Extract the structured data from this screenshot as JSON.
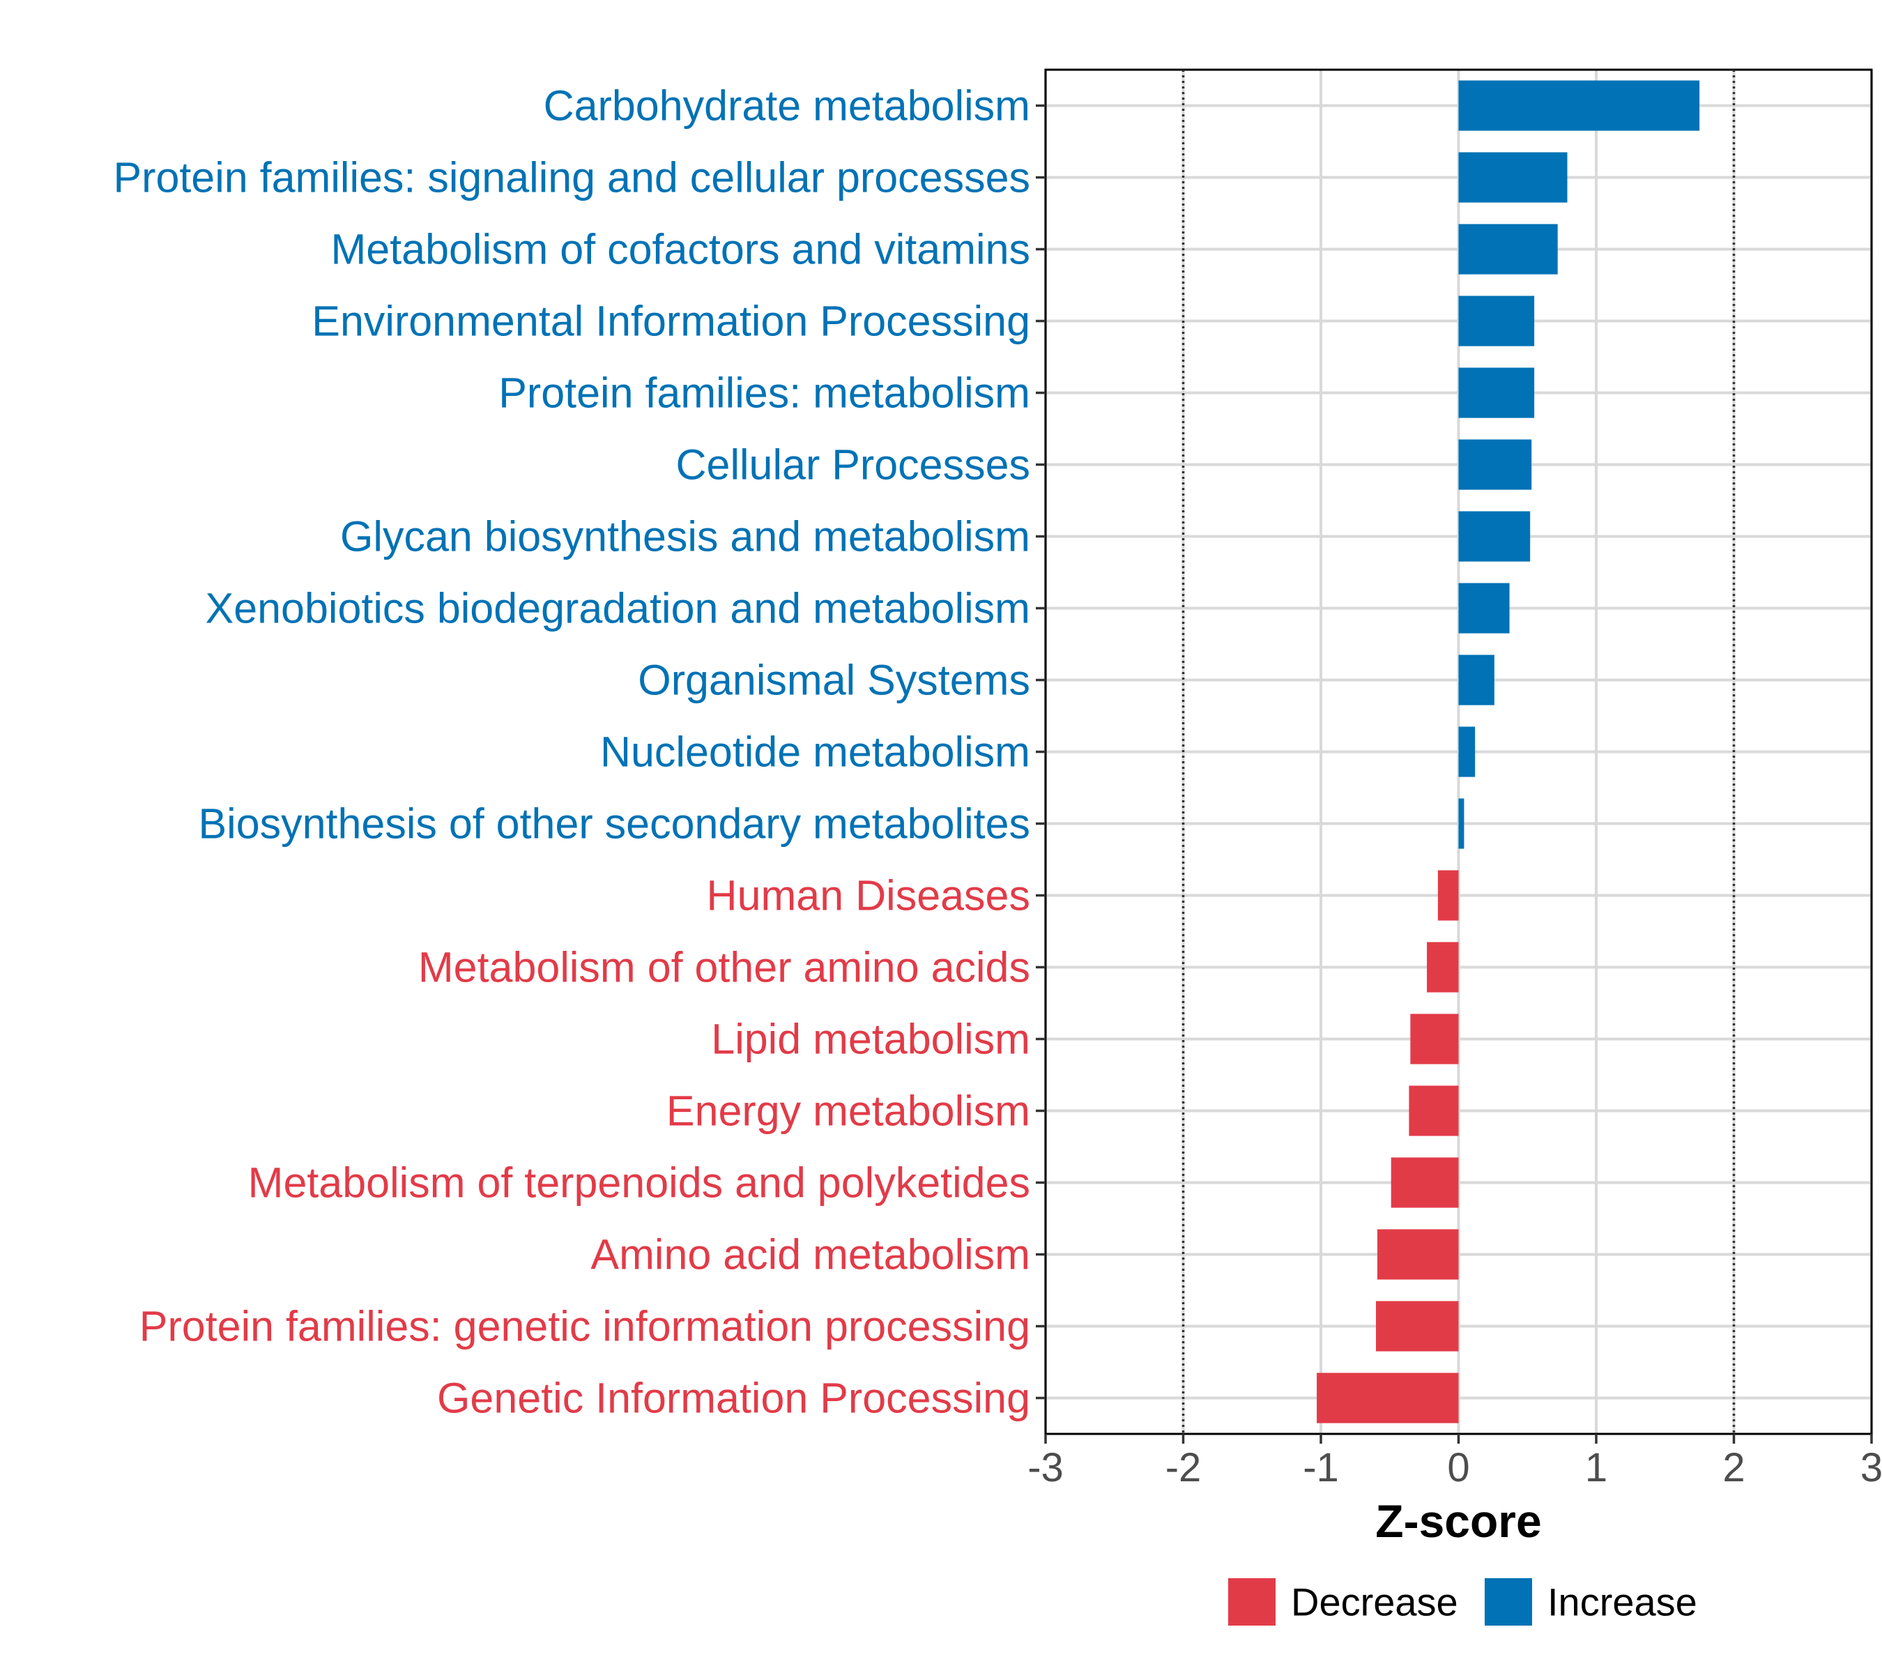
{
  "chart_data": {
    "type": "bar",
    "orientation": "horizontal",
    "title": "",
    "xlabel": "Z-score",
    "ylabel": "",
    "xlim": [
      -3,
      3
    ],
    "x_ticks": [
      "-3",
      "-2",
      "-1",
      "0",
      "1",
      "2",
      "3"
    ],
    "reference_lines": [
      -2,
      2
    ],
    "grid": true,
    "colors": {
      "Increase": "#0072b5",
      "Decrease": "#e23b48"
    },
    "categories": [
      "Carbohydrate metabolism",
      "Protein families: signaling and cellular processes",
      "Metabolism of cofactors and vitamins",
      "Environmental Information Processing",
      "Protein families: metabolism",
      "Cellular Processes",
      "Glycan biosynthesis and metabolism",
      "Xenobiotics biodegradation and metabolism",
      "Organismal Systems",
      "Nucleotide metabolism",
      "Biosynthesis of other secondary metabolites",
      "Human Diseases",
      "Metabolism of other amino acids",
      "Lipid metabolism",
      "Energy metabolism",
      "Metabolism of terpenoids and polyketides",
      "Amino acid metabolism",
      "Protein families: genetic information processing",
      "Genetic Information Processing"
    ],
    "values": [
      1.75,
      0.79,
      0.72,
      0.55,
      0.55,
      0.53,
      0.52,
      0.37,
      0.26,
      0.12,
      0.04,
      -0.15,
      -0.23,
      -0.35,
      -0.36,
      -0.49,
      -0.59,
      -0.6,
      -1.03
    ],
    "groups": [
      "Increase",
      "Increase",
      "Increase",
      "Increase",
      "Increase",
      "Increase",
      "Increase",
      "Increase",
      "Increase",
      "Increase",
      "Increase",
      "Decrease",
      "Decrease",
      "Decrease",
      "Decrease",
      "Decrease",
      "Decrease",
      "Decrease",
      "Decrease"
    ],
    "legend": {
      "position": "bottom",
      "entries": [
        {
          "label": "Decrease",
          "color": "#e23b48"
        },
        {
          "label": "Increase",
          "color": "#0072b5"
        }
      ]
    }
  }
}
